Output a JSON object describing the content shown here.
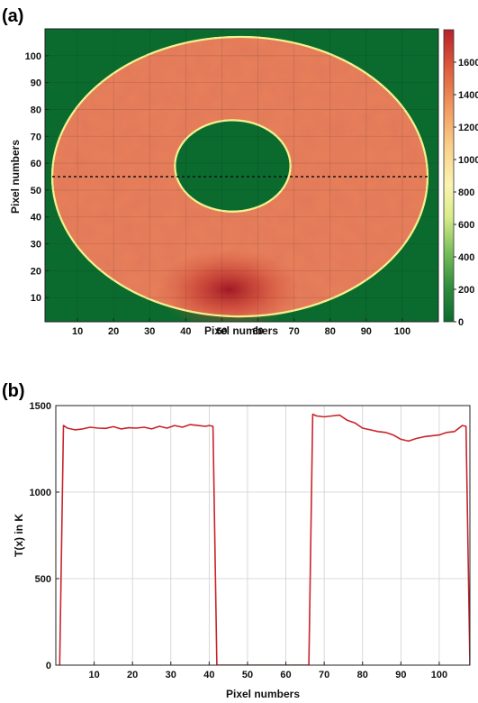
{
  "chart_data": [
    {
      "panel": "(a)",
      "type": "heatmap",
      "xlabel": "Pixel numbers",
      "ylabel": "Pixel numbers",
      "xlim": [
        1,
        110
      ],
      "ylim": [
        1,
        110
      ],
      "x_ticks": [
        10,
        20,
        30,
        40,
        50,
        60,
        70,
        80,
        90,
        100
      ],
      "y_ticks": [
        10,
        20,
        30,
        40,
        50,
        60,
        70,
        80,
        90,
        100
      ],
      "colorbar": {
        "min": 0,
        "max": 1800,
        "ticks": [
          0,
          200,
          400,
          600,
          800,
          1000,
          1200,
          1400,
          1600
        ],
        "colors": [
          "#0b6b2e",
          "#2f8d3d",
          "#79bf5a",
          "#d9ec8a",
          "#fbf3b2",
          "#f9d089",
          "#f29a5f",
          "#e0603d",
          "#b8202a"
        ]
      },
      "regions": {
        "outer_disk": {
          "center": [
            55,
            55
          ],
          "radius_x": 52,
          "radius_y": 52,
          "value": 1380
        },
        "inner_hole": {
          "center": [
            53,
            59
          ],
          "radius_x": 16,
          "radius_y": 17,
          "value": 0
        },
        "hot_spot": {
          "center": [
            52,
            10
          ],
          "value": 1700
        },
        "outside": {
          "value": 0
        }
      },
      "profile_line_y": 55
    },
    {
      "panel": "(b)",
      "type": "line",
      "xlabel": "Pixel numbers",
      "ylabel": "T(x) in K",
      "xlim": [
        0,
        108
      ],
      "ylim": [
        0,
        1500
      ],
      "x_ticks": [
        10,
        20,
        30,
        40,
        50,
        60,
        70,
        80,
        90,
        100
      ],
      "y_ticks": [
        0,
        500,
        1000,
        1500
      ],
      "grid": true,
      "color": "#c8242b",
      "x": [
        1,
        2,
        3,
        5,
        7,
        9,
        11,
        13,
        15,
        17,
        19,
        21,
        23,
        25,
        27,
        29,
        31,
        33,
        35,
        37,
        39,
        40,
        41,
        42,
        50,
        60,
        66,
        67,
        68,
        70,
        72,
        74,
        76,
        78,
        80,
        82,
        84,
        86,
        88,
        90,
        92,
        94,
        96,
        98,
        100,
        102,
        104,
        106,
        107,
        108
      ],
      "y": [
        0,
        1385,
        1370,
        1360,
        1365,
        1375,
        1370,
        1368,
        1378,
        1365,
        1372,
        1370,
        1375,
        1365,
        1380,
        1370,
        1385,
        1375,
        1390,
        1385,
        1380,
        1385,
        1380,
        0,
        0,
        0,
        0,
        1450,
        1440,
        1435,
        1440,
        1445,
        1415,
        1400,
        1370,
        1360,
        1350,
        1345,
        1330,
        1305,
        1295,
        1310,
        1320,
        1325,
        1330,
        1345,
        1350,
        1385,
        1380,
        0
      ]
    }
  ]
}
